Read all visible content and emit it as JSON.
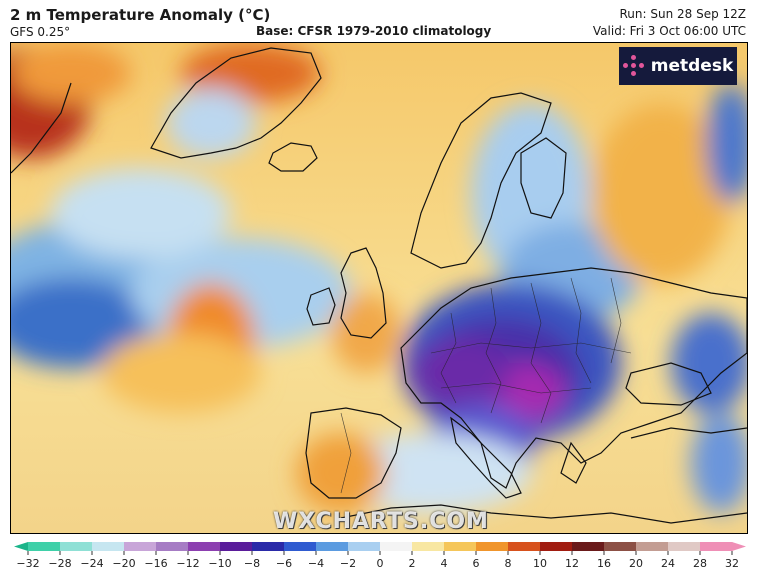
{
  "header": {
    "title": "2 m Temperature Anomaly (°C)",
    "model": "GFS 0.25°",
    "base": "Base: CFSR 1979-2010 climatology",
    "run": "Run: Sun 28 Sep 12Z",
    "valid": "Valid: Fri 3 Oct 06:00 UTC"
  },
  "logo": {
    "text": "metdesk",
    "icon": "metdesk-dots-icon"
  },
  "watermark": "WXCHARTS.COM",
  "colorbar": {
    "ticks": [
      "−32",
      "−28",
      "−24",
      "−20",
      "−16",
      "−12",
      "−10",
      "−8",
      "−6",
      "−4",
      "−2",
      "0",
      "2",
      "4",
      "6",
      "8",
      "10",
      "12",
      "16",
      "20",
      "24",
      "28",
      "32"
    ],
    "colors": [
      "#1bb58a",
      "#3fd0a8",
      "#8fe0d5",
      "#c6e6f0",
      "#c8a5d8",
      "#a67cc4",
      "#8c3fb0",
      "#5a1c9a",
      "#2a2aa8",
      "#2f5bd0",
      "#5b9be0",
      "#a9cff0",
      "#f4f4f4",
      "#f8e7a2",
      "#f5c65a",
      "#f0952c",
      "#d7511c",
      "#a11c10",
      "#6a1a1a",
      "#8c5045",
      "#c39d93",
      "#e0c9c5",
      "#ef8fb6"
    ]
  },
  "colors": {
    "blue_deep": "#3a5fc8",
    "blue_light": "#bcd9ef",
    "purple": "#5a2aa8",
    "magenta": "#b02ab4",
    "orange": "#f2a63c",
    "yellow": "#f8d98c",
    "red": "#d24a1e",
    "coast": "#111111"
  }
}
